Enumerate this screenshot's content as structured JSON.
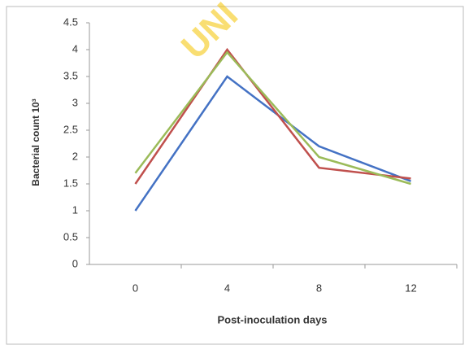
{
  "chart_data": {
    "type": "line",
    "watermark": "UNI",
    "x_label": "Post-inoculation days",
    "y_label": "Bacterial count 10³",
    "categories": [
      "0",
      "4",
      "8",
      "12"
    ],
    "series": [
      {
        "color": "#4472c4",
        "values": [
          1,
          3.5,
          2.2,
          1.55
        ]
      },
      {
        "color": "#c0504d",
        "values": [
          1.5,
          4,
          1.8,
          1.6
        ]
      },
      {
        "color": "#9bbb59",
        "values": [
          1.7,
          3.95,
          2.0,
          1.5
        ]
      }
    ],
    "ylim": [
      0,
      4.5
    ],
    "yticks": [
      0,
      0.5,
      1,
      1.5,
      2,
      2.5,
      3,
      3.5,
      4,
      4.5
    ],
    "grid": false
  }
}
